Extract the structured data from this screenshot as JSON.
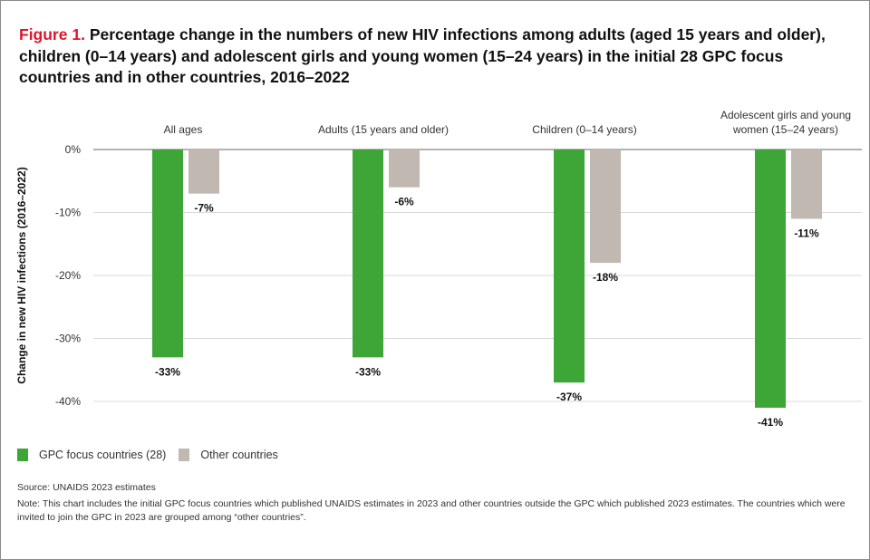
{
  "title": {
    "figure_label": "Figure 1.",
    "text": "Percentage change in the numbers of new HIV infections among adults (aged 15 years and older), children (0–14 years) and adolescent girls and young women (15–24 years) in the initial 28 GPC focus countries and in other countries, 2016–2022"
  },
  "chart_data": {
    "type": "bar",
    "ylabel": "Change in new HIV infections (2016–2022)",
    "ylim": [
      -40,
      0
    ],
    "yticks": [
      0,
      -10,
      -20,
      -30,
      -40
    ],
    "ytick_labels": [
      "0%",
      "-10%",
      "-20%",
      "-30%",
      "-40%"
    ],
    "grid": true,
    "legend_placement": "bottom-left",
    "categories": [
      [
        "All ages"
      ],
      [
        "Adults (15 years and older)"
      ],
      [
        "Children (0–14 years)"
      ],
      [
        "Adolescent girls and young",
        "women (15–24 years)"
      ]
    ],
    "series": [
      {
        "name": "GPC focus countries (28)",
        "color": "#3da637",
        "values": [
          -33,
          -33,
          -37,
          -41
        ],
        "labels": [
          "-33%",
          "-33%",
          "-37%",
          "-41%"
        ]
      },
      {
        "name": "Other countries",
        "color": "#c1b8b1",
        "values": [
          -7,
          -6,
          -18,
          -11
        ],
        "labels": [
          "-7%",
          "-6%",
          "-18%",
          "-11%"
        ]
      }
    ]
  },
  "source": "Source: UNAIDS 2023 estimates",
  "note": "Note: This chart includes the initial GPC focus countries which published UNAIDS estimates in 2023 and other countries outside the GPC which published 2023 estimates. The countries which were invited to join the GPC in 2023 are grouped among “other countries”."
}
